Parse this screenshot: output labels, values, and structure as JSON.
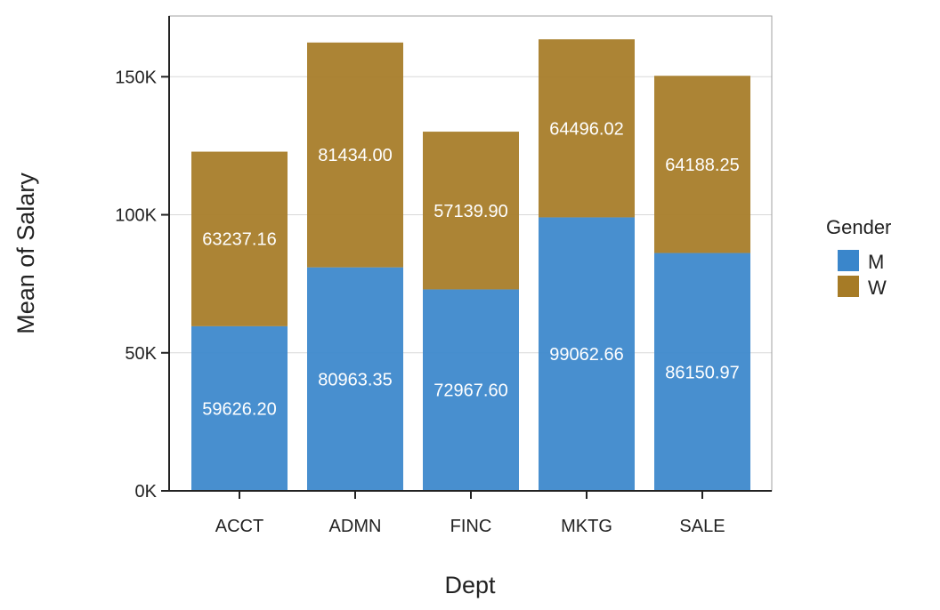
{
  "chart_data": {
    "type": "bar",
    "stacked": true,
    "categories": [
      "ACCT",
      "ADMN",
      "FINC",
      "MKTG",
      "SALE"
    ],
    "series": [
      {
        "name": "M",
        "values": [
          59626.2,
          80963.35,
          72967.6,
          99062.66,
          86150.97
        ],
        "labels": [
          "59626.20",
          "80963.35",
          "72967.60",
          "99062.66",
          "86150.97"
        ],
        "color": "#3a86cb"
      },
      {
        "name": "W",
        "values": [
          63237.16,
          81434.0,
          57139.9,
          64496.02,
          64188.25
        ],
        "labels": [
          "63237.16",
          "81434.00",
          "57139.90",
          "64496.02",
          "64188.25"
        ],
        "color": "#a67b26"
      }
    ],
    "xlabel": "Dept",
    "ylabel": "Mean of Salary",
    "ylim": [
      0,
      172000
    ],
    "yticks": [
      0,
      50000,
      100000,
      150000
    ],
    "ytick_labels": [
      "0K",
      "50K",
      "100K",
      "150K"
    ],
    "grid": "horizontal",
    "legend": {
      "title": "Gender",
      "position": "right",
      "entries": [
        "M",
        "W"
      ]
    }
  }
}
